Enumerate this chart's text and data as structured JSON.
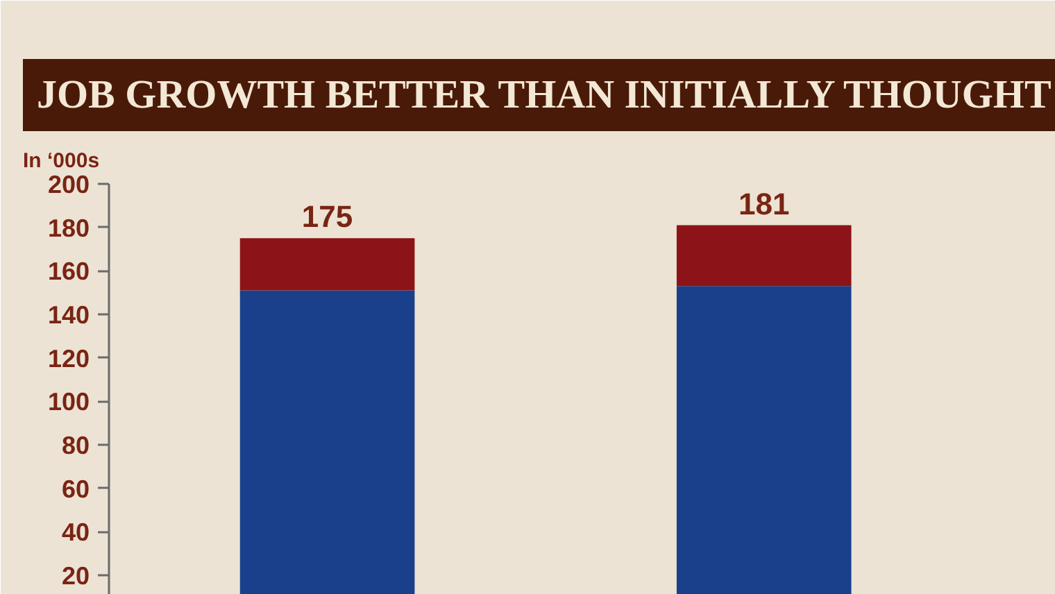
{
  "chart_data": {
    "type": "bar",
    "title": "JOB GROWTH BETTER THAN INITIALLY THOUGHT",
    "ylabel": "In ‘000s",
    "categories": [
      null,
      null
    ],
    "series": [
      {
        "color": "#1a408c",
        "values": [
          151,
          153
        ]
      },
      {
        "color": "#8c1418",
        "values": [
          24,
          28
        ]
      }
    ],
    "stacked": true,
    "totals": [
      "175",
      "181"
    ],
    "ylim": [
      11,
      200
    ],
    "yticks": [
      20,
      40,
      60,
      80,
      100,
      120,
      140,
      160,
      180,
      200
    ],
    "tick_labels": "y"
  }
}
